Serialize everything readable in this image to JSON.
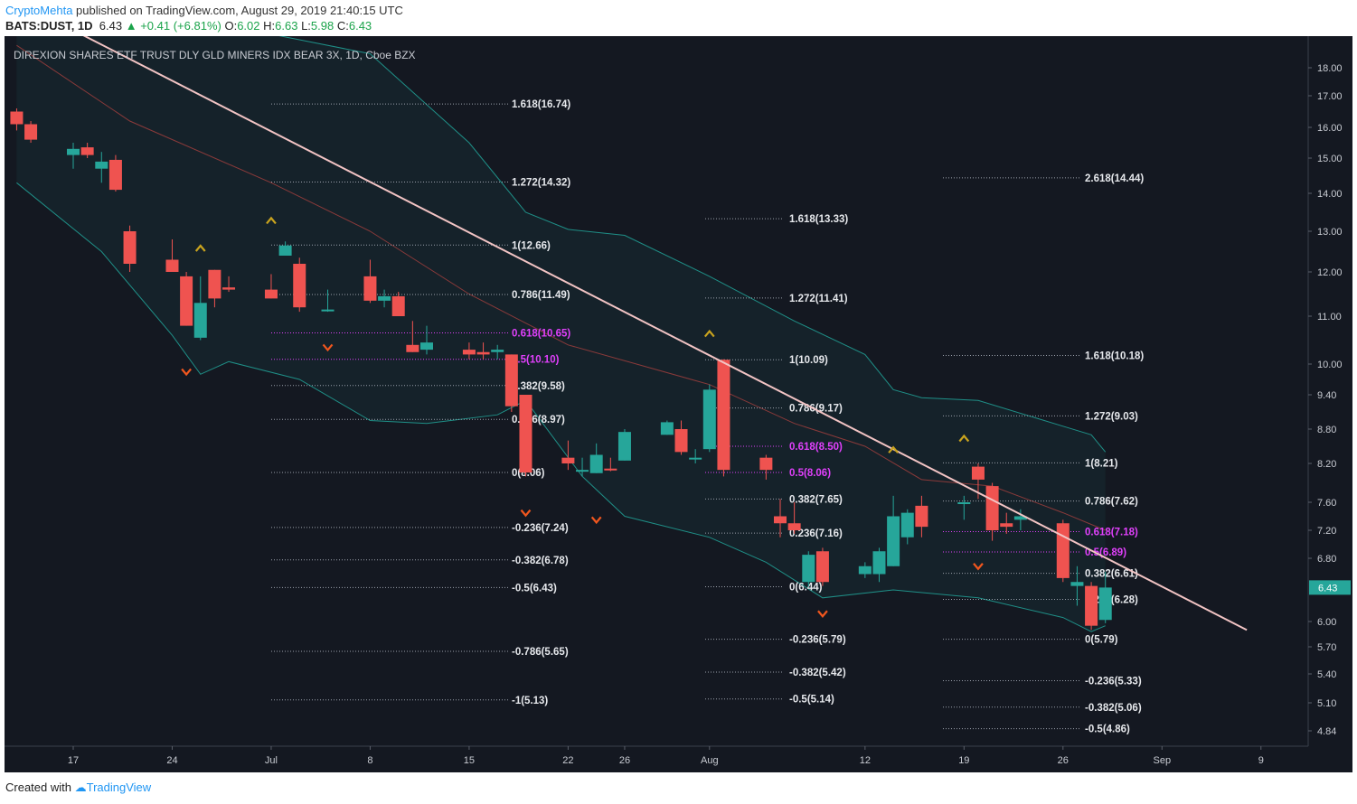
{
  "header": {
    "author": "CryptoMehta",
    "published": "published on TradingView.com, August 29, 2019 21:40:15 UTC",
    "symbol": "BATS:DUST, 1D",
    "last": "6.43",
    "change": "+0.41 (+6.81%)",
    "o_label": "O:",
    "o_value": "6.02",
    "h_label": "H:",
    "h_value": "6.63",
    "l_label": "L:",
    "l_value": "5.98",
    "c_label": "C:",
    "c_value": "6.43"
  },
  "footer": {
    "created": "Created with",
    "brand": "TradingView"
  },
  "colors": {
    "bull": "#26a69a",
    "bear": "#ef5350",
    "trendline": "#f2c4c4",
    "fib_magenta": "#e040fb",
    "band": "#1f8f87",
    "basis": "#8a3a3a",
    "arrow_up": "#c8a31e",
    "arrow_down": "#f0561e",
    "price_tag": "#26a69a"
  },
  "chart_data": {
    "type": "candlestick",
    "title": "DIREXION SHARES ETF TRUST DLY GLD MINERS IDX BEAR 3X, 1D, Cboe BZX",
    "y_ticks": [
      18.0,
      17.0,
      16.0,
      15.0,
      14.0,
      13.0,
      12.0,
      11.0,
      10.0,
      9.4,
      8.8,
      8.2,
      7.6,
      7.2,
      6.8,
      6.0,
      5.7,
      5.4,
      5.1,
      4.84
    ],
    "y_tick_labels": [
      "18.00",
      "17.00",
      "16.00",
      "15.00",
      "14.00",
      "13.00",
      "12.00",
      "11.00",
      "10.00",
      "9.40",
      "8.80",
      "8.20",
      "7.60",
      "7.20",
      "6.80",
      "6.00",
      "5.70",
      "5.40",
      "5.10",
      "4.84"
    ],
    "x_ticks": [
      {
        "label": "17",
        "date": "2019-06-17"
      },
      {
        "label": "24",
        "date": "2019-06-24"
      },
      {
        "label": "Jul",
        "date": "2019-07-01"
      },
      {
        "label": "8",
        "date": "2019-07-08"
      },
      {
        "label": "15",
        "date": "2019-07-15"
      },
      {
        "label": "22",
        "date": "2019-07-22"
      },
      {
        "label": "26",
        "date": "2019-07-26"
      },
      {
        "label": "Aug",
        "date": "2019-08-01"
      },
      {
        "label": "12",
        "date": "2019-08-12"
      },
      {
        "label": "19",
        "date": "2019-08-19"
      },
      {
        "label": "26",
        "date": "2019-08-26"
      },
      {
        "label": "Sep",
        "date": "2019-09-02"
      },
      {
        "label": "9",
        "date": "2019-09-09"
      }
    ],
    "current_price": "6.43",
    "candles": [
      {
        "d": "2019-06-13",
        "o": 16.5,
        "h": 16.6,
        "l": 15.9,
        "c": 16.1
      },
      {
        "d": "2019-06-14",
        "o": 16.1,
        "h": 16.2,
        "l": 15.5,
        "c": 15.6
      },
      {
        "d": "2019-06-17",
        "o": 15.1,
        "h": 15.5,
        "l": 14.7,
        "c": 15.3
      },
      {
        "d": "2019-06-18",
        "o": 15.35,
        "h": 15.5,
        "l": 15.0,
        "c": 15.1
      },
      {
        "d": "2019-06-19",
        "o": 14.7,
        "h": 15.2,
        "l": 14.3,
        "c": 14.9
      },
      {
        "d": "2019-06-20",
        "o": 14.95,
        "h": 15.1,
        "l": 14.05,
        "c": 14.1
      },
      {
        "d": "2019-06-21",
        "o": 13.0,
        "h": 13.15,
        "l": 12.0,
        "c": 12.2
      },
      {
        "d": "2019-06-24",
        "o": 12.3,
        "h": 12.8,
        "l": 12.0,
        "c": 12.0
      },
      {
        "d": "2019-06-25",
        "o": 11.9,
        "h": 12.0,
        "l": 10.8,
        "c": 10.8
      },
      {
        "d": "2019-06-26",
        "o": 10.55,
        "h": 11.9,
        "l": 10.5,
        "c": 11.3
      },
      {
        "d": "2019-06-27",
        "o": 12.05,
        "h": 12.05,
        "l": 11.2,
        "c": 11.4
      },
      {
        "d": "2019-06-28",
        "o": 11.65,
        "h": 11.9,
        "l": 11.55,
        "c": 11.6
      },
      {
        "d": "2019-07-01",
        "o": 11.6,
        "h": 11.95,
        "l": 11.4,
        "c": 11.4
      },
      {
        "d": "2019-07-02",
        "o": 12.4,
        "h": 12.75,
        "l": 12.4,
        "c": 12.65
      },
      {
        "d": "2019-07-03",
        "o": 12.2,
        "h": 12.35,
        "l": 11.1,
        "c": 11.2
      },
      {
        "d": "2019-07-05",
        "o": 11.15,
        "h": 11.6,
        "l": 11.1,
        "c": 11.15
      },
      {
        "d": "2019-07-08",
        "o": 11.9,
        "h": 12.3,
        "l": 11.3,
        "c": 11.35
      },
      {
        "d": "2019-07-09",
        "o": 11.35,
        "h": 11.6,
        "l": 11.2,
        "c": 11.45
      },
      {
        "d": "2019-07-10",
        "o": 11.45,
        "h": 11.55,
        "l": 11.0,
        "c": 11.0
      },
      {
        "d": "2019-07-11",
        "o": 10.4,
        "h": 10.9,
        "l": 10.25,
        "c": 10.25
      },
      {
        "d": "2019-07-12",
        "o": 10.3,
        "h": 10.8,
        "l": 10.2,
        "c": 10.45
      },
      {
        "d": "2019-07-15",
        "o": 10.3,
        "h": 10.45,
        "l": 10.1,
        "c": 10.2
      },
      {
        "d": "2019-07-16",
        "o": 10.25,
        "h": 10.45,
        "l": 10.1,
        "c": 10.2
      },
      {
        "d": "2019-07-17",
        "o": 10.25,
        "h": 10.4,
        "l": 10.1,
        "c": 10.3
      },
      {
        "d": "2019-07-18",
        "o": 10.2,
        "h": 10.2,
        "l": 9.1,
        "c": 9.2
      },
      {
        "d": "2019-07-19",
        "o": 9.4,
        "h": 9.4,
        "l": 8.0,
        "c": 8.06
      },
      {
        "d": "2019-07-22",
        "o": 8.3,
        "h": 8.6,
        "l": 8.1,
        "c": 8.2
      },
      {
        "d": "2019-07-23",
        "o": 8.1,
        "h": 8.3,
        "l": 8.0,
        "c": 8.1
      },
      {
        "d": "2019-07-24",
        "o": 8.05,
        "h": 8.55,
        "l": 8.05,
        "c": 8.35
      },
      {
        "d": "2019-07-25",
        "o": 8.12,
        "h": 8.3,
        "l": 8.08,
        "c": 8.1
      },
      {
        "d": "2019-07-26",
        "o": 8.25,
        "h": 8.8,
        "l": 8.25,
        "c": 8.75
      },
      {
        "d": "2019-07-29",
        "o": 8.7,
        "h": 8.95,
        "l": 8.7,
        "c": 8.92
      },
      {
        "d": "2019-07-30",
        "o": 8.8,
        "h": 8.95,
        "l": 8.35,
        "c": 8.4
      },
      {
        "d": "2019-07-31",
        "o": 8.3,
        "h": 8.45,
        "l": 8.2,
        "c": 8.3
      },
      {
        "d": "2019-08-01",
        "o": 8.45,
        "h": 9.6,
        "l": 8.4,
        "c": 9.5
      },
      {
        "d": "2019-08-02",
        "o": 10.09,
        "h": 10.1,
        "l": 8.0,
        "c": 8.1
      },
      {
        "d": "2019-08-05",
        "o": 8.3,
        "h": 8.35,
        "l": 7.95,
        "c": 8.1
      },
      {
        "d": "2019-08-06",
        "o": 7.4,
        "h": 7.65,
        "l": 7.1,
        "c": 7.3
      },
      {
        "d": "2019-08-07",
        "o": 7.3,
        "h": 7.6,
        "l": 7.15,
        "c": 7.2
      },
      {
        "d": "2019-08-08",
        "o": 6.5,
        "h": 6.9,
        "l": 6.44,
        "c": 6.85
      },
      {
        "d": "2019-08-09",
        "o": 6.9,
        "h": 6.95,
        "l": 6.45,
        "c": 6.5
      },
      {
        "d": "2019-08-12",
        "o": 6.6,
        "h": 6.75,
        "l": 6.55,
        "c": 6.7
      },
      {
        "d": "2019-08-13",
        "o": 6.6,
        "h": 6.95,
        "l": 6.5,
        "c": 6.9
      },
      {
        "d": "2019-08-14",
        "o": 6.7,
        "h": 7.7,
        "l": 6.7,
        "c": 7.4
      },
      {
        "d": "2019-08-15",
        "o": 7.1,
        "h": 7.5,
        "l": 7.0,
        "c": 7.45
      },
      {
        "d": "2019-08-16",
        "o": 7.55,
        "h": 7.7,
        "l": 7.1,
        "c": 7.25
      },
      {
        "d": "2019-08-19",
        "o": 7.6,
        "h": 7.7,
        "l": 7.35,
        "c": 7.6
      },
      {
        "d": "2019-08-20",
        "o": 8.15,
        "h": 8.2,
        "l": 7.65,
        "c": 7.95
      },
      {
        "d": "2019-08-21",
        "o": 7.85,
        "h": 7.9,
        "l": 7.05,
        "c": 7.2
      },
      {
        "d": "2019-08-22",
        "o": 7.3,
        "h": 7.45,
        "l": 7.15,
        "c": 7.25
      },
      {
        "d": "2019-08-23",
        "o": 7.35,
        "h": 7.5,
        "l": 7.2,
        "c": 7.4
      },
      {
        "d": "2019-08-26",
        "o": 7.3,
        "h": 7.35,
        "l": 6.5,
        "c": 6.55
      },
      {
        "d": "2019-08-27",
        "o": 6.45,
        "h": 6.7,
        "l": 6.2,
        "c": 6.5
      },
      {
        "d": "2019-08-28",
        "o": 6.45,
        "h": 6.5,
        "l": 5.9,
        "c": 5.95
      },
      {
        "d": "2019-08-29",
        "o": 6.02,
        "h": 6.63,
        "l": 5.98,
        "c": 6.43
      }
    ],
    "fib_levels": [
      {
        "group": 1,
        "label": "1.618(16.74)",
        "v": 16.74
      },
      {
        "group": 1,
        "label": "1.272(14.32)",
        "v": 14.32
      },
      {
        "group": 1,
        "label": "1(12.66)",
        "v": 12.66
      },
      {
        "group": 1,
        "label": "0.786(11.49)",
        "v": 11.49
      },
      {
        "group": 1,
        "label": "0.618(10.65)",
        "v": 10.65,
        "magenta": true
      },
      {
        "group": 1,
        "label": "0.5(10.10)",
        "v": 10.1,
        "magenta": true
      },
      {
        "group": 1,
        "label": "0.382(9.58)",
        "v": 9.58
      },
      {
        "group": 1,
        "label": "0.236(8.97)",
        "v": 8.97
      },
      {
        "group": 1,
        "label": "0(8.06)",
        "v": 8.06
      },
      {
        "group": 1,
        "label": "-0.236(7.24)",
        "v": 7.24
      },
      {
        "group": 1,
        "label": "-0.382(6.78)",
        "v": 6.78
      },
      {
        "group": 1,
        "label": "-0.5(6.43)",
        "v": 6.43
      },
      {
        "group": 1,
        "label": "-0.786(5.65)",
        "v": 5.65
      },
      {
        "group": 1,
        "label": "-1(5.13)",
        "v": 5.13
      },
      {
        "group": 2,
        "label": "1.618(13.33)",
        "v": 13.33
      },
      {
        "group": 2,
        "label": "1.272(11.41)",
        "v": 11.41
      },
      {
        "group": 2,
        "label": "1(10.09)",
        "v": 10.09
      },
      {
        "group": 2,
        "label": "0.786(9.17)",
        "v": 9.17
      },
      {
        "group": 2,
        "label": "0.618(8.50)",
        "v": 8.5,
        "magenta": true
      },
      {
        "group": 2,
        "label": "0.5(8.06)",
        "v": 8.06,
        "magenta": true
      },
      {
        "group": 2,
        "label": "0.382(7.65)",
        "v": 7.65
      },
      {
        "group": 2,
        "label": "0.236(7.16)",
        "v": 7.16
      },
      {
        "group": 2,
        "label": "0(6.44)",
        "v": 6.44
      },
      {
        "group": 2,
        "label": "-0.236(5.79)",
        "v": 5.79
      },
      {
        "group": 2,
        "label": "-0.382(5.42)",
        "v": 5.42
      },
      {
        "group": 2,
        "label": "-0.5(5.14)",
        "v": 5.14
      },
      {
        "group": 3,
        "label": "2.618(14.44)",
        "v": 14.44
      },
      {
        "group": 3,
        "label": "1.618(10.18)",
        "v": 10.18
      },
      {
        "group": 3,
        "label": "1.272(9.03)",
        "v": 9.03
      },
      {
        "group": 3,
        "label": "1(8.21)",
        "v": 8.21
      },
      {
        "group": 3,
        "label": "0.786(7.62)",
        "v": 7.62
      },
      {
        "group": 3,
        "label": "0.618(7.18)",
        "v": 7.18,
        "magenta": true
      },
      {
        "group": 3,
        "label": "0.5(6.89)",
        "v": 6.89,
        "magenta": true
      },
      {
        "group": 3,
        "label": "0.382(6.61)",
        "v": 6.61
      },
      {
        "group": 3,
        "label": "0.236(6.28)",
        "v": 6.28
      },
      {
        "group": 3,
        "label": "0(5.79)",
        "v": 5.79
      },
      {
        "group": 3,
        "label": "-0.236(5.33)",
        "v": 5.33
      },
      {
        "group": 3,
        "label": "-0.382(5.06)",
        "v": 5.06
      },
      {
        "group": 3,
        "label": "-0.5(4.86)",
        "v": 4.86
      }
    ],
    "trendline": [
      {
        "d": "2019-06-16",
        "v": 19.6
      },
      {
        "d": "2019-09-08",
        "v": 5.9
      }
    ],
    "bollinger": {
      "upper": [
        {
          "d": "2019-06-13",
          "v": 21.0
        },
        {
          "d": "2019-06-28",
          "v": 19.5
        },
        {
          "d": "2019-07-08",
          "v": 18.5
        },
        {
          "d": "2019-07-15",
          "v": 15.5
        },
        {
          "d": "2019-07-19",
          "v": 13.5
        },
        {
          "d": "2019-07-22",
          "v": 13.05
        },
        {
          "d": "2019-07-26",
          "v": 12.9
        },
        {
          "d": "2019-08-01",
          "v": 11.9
        },
        {
          "d": "2019-08-07",
          "v": 10.9
        },
        {
          "d": "2019-08-12",
          "v": 10.2
        },
        {
          "d": "2019-08-14",
          "v": 9.5
        },
        {
          "d": "2019-08-16",
          "v": 9.35
        },
        {
          "d": "2019-08-20",
          "v": 9.3
        },
        {
          "d": "2019-08-26",
          "v": 8.85
        },
        {
          "d": "2019-08-28",
          "v": 8.7
        },
        {
          "d": "2019-08-29",
          "v": 8.4
        }
      ],
      "basis": [
        {
          "d": "2019-06-13",
          "v": 18.8
        },
        {
          "d": "2019-06-21",
          "v": 16.2
        },
        {
          "d": "2019-07-01",
          "v": 14.3
        },
        {
          "d": "2019-07-08",
          "v": 13.0
        },
        {
          "d": "2019-07-15",
          "v": 11.5
        },
        {
          "d": "2019-07-22",
          "v": 10.4
        },
        {
          "d": "2019-08-01",
          "v": 9.6
        },
        {
          "d": "2019-08-07",
          "v": 8.9
        },
        {
          "d": "2019-08-12",
          "v": 8.5
        },
        {
          "d": "2019-08-16",
          "v": 7.95
        },
        {
          "d": "2019-08-21",
          "v": 7.85
        },
        {
          "d": "2019-08-26",
          "v": 7.45
        },
        {
          "d": "2019-08-29",
          "v": 7.2
        }
      ],
      "lower": [
        {
          "d": "2019-06-13",
          "v": 14.3
        },
        {
          "d": "2019-06-19",
          "v": 12.5
        },
        {
          "d": "2019-06-24",
          "v": 10.6
        },
        {
          "d": "2019-06-26",
          "v": 9.8
        },
        {
          "d": "2019-06-28",
          "v": 10.05
        },
        {
          "d": "2019-07-03",
          "v": 9.7
        },
        {
          "d": "2019-07-08",
          "v": 8.95
        },
        {
          "d": "2019-07-12",
          "v": 8.9
        },
        {
          "d": "2019-07-17",
          "v": 9.05
        },
        {
          "d": "2019-07-19",
          "v": 9.3
        },
        {
          "d": "2019-07-23",
          "v": 8.0
        },
        {
          "d": "2019-07-26",
          "v": 7.4
        },
        {
          "d": "2019-08-01",
          "v": 7.1
        },
        {
          "d": "2019-08-05",
          "v": 6.75
        },
        {
          "d": "2019-08-09",
          "v": 6.3
        },
        {
          "d": "2019-08-14",
          "v": 6.4
        },
        {
          "d": "2019-08-20",
          "v": 6.3
        },
        {
          "d": "2019-08-26",
          "v": 6.05
        },
        {
          "d": "2019-08-28",
          "v": 5.88
        },
        {
          "d": "2019-08-29",
          "v": 5.95
        }
      ]
    },
    "markers": [
      {
        "d": "2019-07-01",
        "v": 13.3,
        "dir": "up"
      },
      {
        "d": "2019-06-26",
        "v": 12.6,
        "dir": "up"
      },
      {
        "d": "2019-06-25",
        "v": 9.85,
        "dir": "down"
      },
      {
        "d": "2019-07-05",
        "v": 10.35,
        "dir": "down"
      },
      {
        "d": "2019-08-01",
        "v": 10.65,
        "dir": "up"
      },
      {
        "d": "2019-07-19",
        "v": 7.45,
        "dir": "down"
      },
      {
        "d": "2019-07-24",
        "v": 7.35,
        "dir": "down"
      },
      {
        "d": "2019-08-09",
        "v": 6.1,
        "dir": "down"
      },
      {
        "d": "2019-08-14",
        "v": 8.45,
        "dir": "up"
      },
      {
        "d": "2019-08-19",
        "v": 8.65,
        "dir": "up"
      },
      {
        "d": "2019-08-20",
        "v": 6.7,
        "dir": "down"
      }
    ]
  }
}
